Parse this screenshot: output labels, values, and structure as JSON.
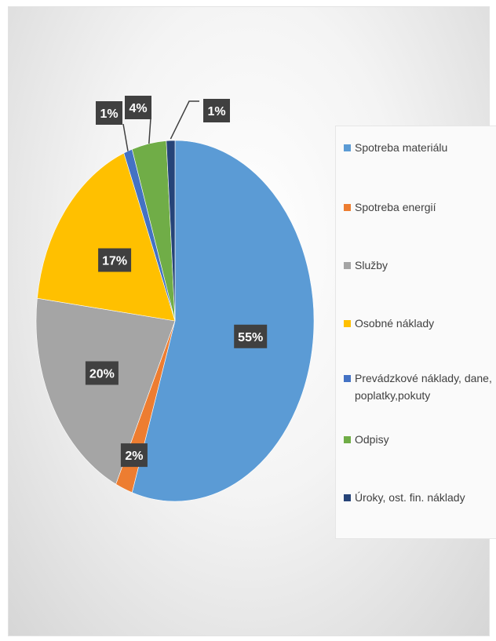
{
  "chart_data": {
    "type": "pie",
    "title": "",
    "categories": [
      "Spotreba materiálu",
      "Spotreba energií",
      "Služby",
      "Osobné náklady",
      "Prevádzkové náklady, dane, poplatky,pokuty",
      "Odpisy",
      "Úroky, ost. fin. náklady"
    ],
    "values": [
      55,
      2,
      20,
      17,
      1,
      4,
      1
    ],
    "data_labels": [
      "55%",
      "2%",
      "20%",
      "17%",
      "1%",
      "4%",
      "1%"
    ],
    "colors": [
      "#5b9bd5",
      "#ed7d31",
      "#a5a5a5",
      "#ffc000",
      "#4472c4",
      "#70ad47",
      "#264478"
    ],
    "legend_position": "right"
  },
  "legend": {
    "items": [
      {
        "label": "Spotreba materiálu",
        "color": "#5b9bd5"
      },
      {
        "label": "Spotreba energií",
        "color": "#ed7d31"
      },
      {
        "label": "Služby",
        "color": "#a5a5a5"
      },
      {
        "label": "Osobné náklady",
        "color": "#ffc000"
      },
      {
        "label": "Prevádzkové náklady, dane, poplatky,pokuty",
        "color": "#4472c4"
      },
      {
        "label": "Odpisy",
        "color": "#70ad47"
      },
      {
        "label": "Úroky, ost. fin. náklady",
        "color": "#264478"
      }
    ]
  }
}
